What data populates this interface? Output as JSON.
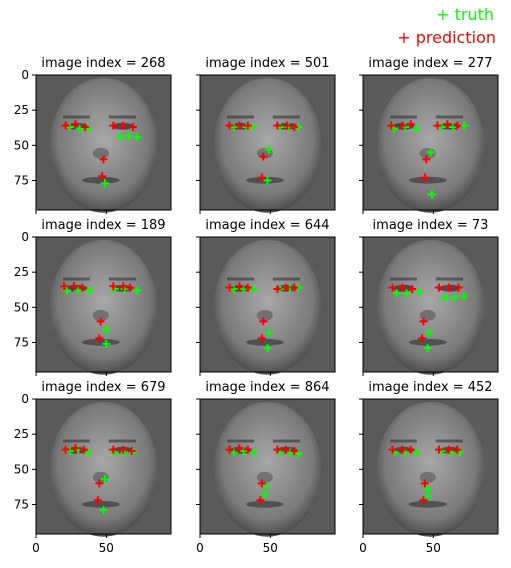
{
  "legend": {
    "truth_label": "+ truth",
    "prediction_label": "+ prediction",
    "truth_color": "#00ff00",
    "prediction_color": "#ff0000"
  },
  "chart_data": {
    "type": "scatter",
    "grid": false,
    "background": "grayscale face images (96x96)",
    "xlim": [
      0,
      96
    ],
    "ylim": [
      96,
      0
    ],
    "xticks": [
      0,
      50
    ],
    "yticks": [
      0,
      25,
      50,
      75
    ],
    "panels": [
      {
        "title": "image index = 268",
        "truth": [
          [
            24,
            37
          ],
          [
            31,
            38
          ],
          [
            37,
            38
          ],
          [
            60,
            44
          ],
          [
            66,
            43
          ],
          [
            72,
            44
          ],
          [
            48,
            60
          ],
          [
            49,
            77
          ]
        ],
        "prediction": [
          [
            21,
            36
          ],
          [
            28,
            35
          ],
          [
            35,
            37
          ],
          [
            55,
            36
          ],
          [
            62,
            36
          ],
          [
            69,
            37
          ],
          [
            48,
            60
          ],
          [
            47,
            72
          ]
        ]
      },
      {
        "title": "image index = 501",
        "truth": [
          [
            24,
            37
          ],
          [
            33,
            37
          ],
          [
            38,
            37
          ],
          [
            57,
            37
          ],
          [
            63,
            37
          ],
          [
            70,
            37
          ],
          [
            49,
            53
          ],
          [
            48,
            75
          ]
        ],
        "prediction": [
          [
            21,
            36
          ],
          [
            28,
            36
          ],
          [
            34,
            36
          ],
          [
            55,
            36
          ],
          [
            62,
            36
          ],
          [
            67,
            37
          ],
          [
            45,
            58
          ],
          [
            44,
            73
          ]
        ]
      },
      {
        "title": "image index = 277",
        "truth": [
          [
            22,
            38
          ],
          [
            30,
            37
          ],
          [
            38,
            38
          ],
          [
            56,
            37
          ],
          [
            64,
            37
          ],
          [
            72,
            36
          ],
          [
            48,
            55
          ],
          [
            49,
            85
          ]
        ],
        "prediction": [
          [
            20,
            36
          ],
          [
            28,
            36
          ],
          [
            34,
            35
          ],
          [
            53,
            36
          ],
          [
            60,
            35
          ],
          [
            67,
            36
          ],
          [
            45,
            60
          ],
          [
            44,
            73
          ]
        ]
      },
      {
        "title": "image index = 189",
        "truth": [
          [
            22,
            38
          ],
          [
            30,
            38
          ],
          [
            38,
            38
          ],
          [
            56,
            37
          ],
          [
            63,
            37
          ],
          [
            72,
            38
          ],
          [
            50,
            66
          ],
          [
            50,
            76
          ]
        ],
        "prediction": [
          [
            20,
            35
          ],
          [
            27,
            35
          ],
          [
            33,
            36
          ],
          [
            55,
            35
          ],
          [
            62,
            35
          ],
          [
            67,
            36
          ],
          [
            46,
            60
          ],
          [
            45,
            72
          ]
        ]
      },
      {
        "title": "image index = 644",
        "truth": [
          [
            24,
            37
          ],
          [
            31,
            37
          ],
          [
            38,
            37
          ],
          [
            57,
            37
          ],
          [
            64,
            36
          ],
          [
            70,
            36
          ],
          [
            49,
            68
          ],
          [
            48,
            79
          ]
        ],
        "prediction": [
          [
            21,
            36
          ],
          [
            28,
            35
          ],
          [
            34,
            36
          ],
          [
            55,
            37
          ],
          [
            61,
            36
          ],
          [
            67,
            36
          ],
          [
            45,
            60
          ],
          [
            44,
            72
          ]
        ]
      },
      {
        "title": "image index = 73",
        "truth": [
          [
            24,
            40
          ],
          [
            31,
            40
          ],
          [
            40,
            39
          ],
          [
            58,
            43
          ],
          [
            65,
            43
          ],
          [
            72,
            42
          ],
          [
            47,
            68
          ],
          [
            46,
            79
          ]
        ],
        "prediction": [
          [
            21,
            36
          ],
          [
            28,
            36
          ],
          [
            35,
            37
          ],
          [
            54,
            36
          ],
          [
            61,
            36
          ],
          [
            68,
            36
          ],
          [
            43,
            60
          ],
          [
            42,
            72
          ]
        ]
      },
      {
        "title": "image index = 679",
        "truth": [
          [
            24,
            37
          ],
          [
            30,
            36
          ],
          [
            37,
            38
          ],
          [
            56,
            38
          ],
          [
            63,
            38
          ],
          [
            69,
            38
          ],
          [
            49,
            57
          ],
          [
            48,
            79
          ]
        ],
        "prediction": [
          [
            21,
            36
          ],
          [
            28,
            35
          ],
          [
            34,
            36
          ],
          [
            55,
            36
          ],
          [
            62,
            36
          ],
          [
            68,
            37
          ],
          [
            45,
            60
          ],
          [
            44,
            72
          ]
        ]
      },
      {
        "title": "image index = 864",
        "truth": [
          [
            24,
            38
          ],
          [
            31,
            37
          ],
          [
            38,
            38
          ],
          [
            57,
            38
          ],
          [
            64,
            38
          ],
          [
            70,
            39
          ],
          [
            47,
            62
          ],
          [
            46,
            68
          ]
        ],
        "prediction": [
          [
            21,
            36
          ],
          [
            28,
            35
          ],
          [
            34,
            36
          ],
          [
            55,
            36
          ],
          [
            61,
            36
          ],
          [
            67,
            37
          ],
          [
            44,
            60
          ],
          [
            43,
            72
          ]
        ]
      },
      {
        "title": "image index = 452",
        "truth": [
          [
            23,
            38
          ],
          [
            30,
            38
          ],
          [
            38,
            38
          ],
          [
            56,
            37
          ],
          [
            63,
            38
          ],
          [
            69,
            38
          ],
          [
            46,
            64
          ],
          [
            46,
            69
          ]
        ],
        "prediction": [
          [
            21,
            36
          ],
          [
            28,
            36
          ],
          [
            34,
            36
          ],
          [
            54,
            36
          ],
          [
            61,
            36
          ],
          [
            67,
            36
          ],
          [
            44,
            60
          ],
          [
            43,
            72
          ]
        ]
      }
    ]
  }
}
